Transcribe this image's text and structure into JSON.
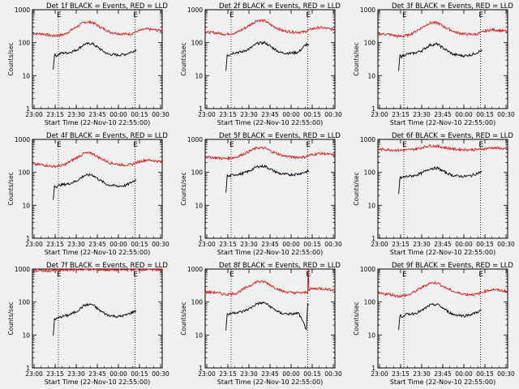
{
  "colors": {
    "background": "#f0f0f0",
    "events": "#000000",
    "lld": "#e01010",
    "axis": "#000000"
  },
  "chart_data": [
    {
      "type": "line",
      "title": "Det 1f BLACK = Events, RED = LLD",
      "xlabel": "Start Time (22-Nov-10 22:55:00)",
      "ylabel": "Counts/sec",
      "xlim": [
        0,
        100
      ],
      "ylim": [
        1,
        1000
      ],
      "yscale": "log",
      "xticks": [
        "23:00",
        "23:15",
        "23:30",
        "23:45",
        "00:00",
        "00:15",
        "00:30"
      ],
      "yticks": [
        "1",
        "10",
        "100",
        "1000"
      ],
      "markers": [
        "E",
        "E"
      ],
      "dotted_x": [
        20,
        79
      ],
      "series": [
        {
          "color": "#e01010",
          "x": [
            0,
            8,
            16,
            24,
            32,
            40,
            46,
            52,
            60,
            68,
            76,
            82,
            88,
            94,
            100
          ],
          "y": [
            190,
            185,
            160,
            175,
            270,
            420,
            420,
            300,
            210,
            185,
            185,
            230,
            260,
            245,
            230
          ]
        },
        {
          "color": "#000000",
          "x": [
            16,
            17,
            18,
            22,
            28,
            34,
            40,
            46,
            52,
            58,
            66,
            72,
            80
          ],
          "y": [
            15,
            45,
            40,
            48,
            50,
            60,
            90,
            95,
            65,
            45,
            42,
            45,
            60
          ]
        }
      ]
    },
    {
      "type": "line",
      "title": "Det 2f BLACK = Events, RED = LLD",
      "xlabel": "Start Time (22-Nov-10 22:55:00)",
      "ylabel": "Counts/sec",
      "xlim": [
        0,
        100
      ],
      "ylim": [
        1,
        1000
      ],
      "yscale": "log",
      "xticks": [
        "23:00",
        "23:15",
        "23:30",
        "23:45",
        "00:00",
        "00:15",
        "00:30"
      ],
      "yticks": [
        "1",
        "10",
        "100",
        "1000"
      ],
      "markers": [
        "E",
        "E"
      ],
      "dotted_x": [
        20,
        79
      ],
      "series": [
        {
          "color": "#e01010",
          "x": [
            0,
            8,
            16,
            24,
            32,
            40,
            46,
            52,
            60,
            68,
            76,
            82,
            88,
            94,
            100
          ],
          "y": [
            210,
            200,
            180,
            200,
            300,
            480,
            460,
            320,
            230,
            210,
            210,
            260,
            290,
            270,
            250
          ]
        },
        {
          "color": "#000000",
          "x": [
            16,
            17,
            18,
            22,
            28,
            34,
            40,
            46,
            52,
            58,
            66,
            72,
            78,
            80
          ],
          "y": [
            15,
            45,
            42,
            50,
            52,
            65,
            95,
            100,
            70,
            50,
            48,
            52,
            90,
            80
          ]
        }
      ]
    },
    {
      "type": "line",
      "title": "Det 3f BLACK = Events, RED = LLD",
      "xlabel": "Start Time (22-Nov-10 22:55:00)",
      "ylabel": "Counts/sec",
      "xlim": [
        0,
        100
      ],
      "ylim": [
        1,
        1000
      ],
      "yscale": "log",
      "xticks": [
        "23:00",
        "23:15",
        "23:30",
        "23:45",
        "00:00",
        "00:15",
        "00:30"
      ],
      "yticks": [
        "1",
        "10",
        "100",
        "1000"
      ],
      "markers": [
        "E",
        "E"
      ],
      "dotted_x": [
        20,
        79
      ],
      "series": [
        {
          "color": "#e01010",
          "x": [
            0,
            8,
            16,
            24,
            32,
            40,
            46,
            52,
            60,
            68,
            76,
            82,
            88,
            94,
            100
          ],
          "y": [
            185,
            180,
            155,
            170,
            260,
            400,
            400,
            290,
            205,
            180,
            180,
            220,
            250,
            235,
            220
          ]
        },
        {
          "color": "#000000",
          "x": [
            16,
            17,
            18,
            22,
            28,
            34,
            40,
            46,
            52,
            58,
            66,
            72,
            80
          ],
          "y": [
            14,
            42,
            38,
            45,
            48,
            58,
            85,
            90,
            62,
            44,
            40,
            43,
            58
          ]
        }
      ]
    },
    {
      "type": "line",
      "title": "Det 4f BLACK = Events, RED = LLD",
      "xlabel": "Start Time (22-Nov-10 22:55:00)",
      "ylabel": "Counts/sec",
      "xlim": [
        0,
        100
      ],
      "ylim": [
        1,
        1000
      ],
      "yscale": "log",
      "xticks": [
        "23:00",
        "23:15",
        "23:30",
        "23:45",
        "00:00",
        "00:15",
        "00:30"
      ],
      "yticks": [
        "1",
        "10",
        "100",
        "1000"
      ],
      "markers": [
        "E",
        "E"
      ],
      "dotted_x": [
        20,
        79
      ],
      "series": [
        {
          "color": "#e01010",
          "x": [
            0,
            8,
            16,
            24,
            32,
            40,
            46,
            52,
            60,
            68,
            76,
            82,
            88,
            94,
            100
          ],
          "y": [
            175,
            170,
            150,
            165,
            250,
            380,
            380,
            270,
            195,
            170,
            170,
            210,
            240,
            225,
            210
          ]
        },
        {
          "color": "#000000",
          "x": [
            16,
            17,
            18,
            22,
            28,
            34,
            40,
            46,
            52,
            58,
            66,
            72,
            80
          ],
          "y": [
            14,
            40,
            37,
            42,
            45,
            55,
            80,
            85,
            58,
            42,
            38,
            40,
            60
          ]
        }
      ]
    },
    {
      "type": "line",
      "title": "Det 5f BLACK = Events, RED = LLD",
      "xlabel": "Start Time (22-Nov-10 22:55:00)",
      "ylabel": "Counts/sec",
      "xlim": [
        0,
        100
      ],
      "ylim": [
        1,
        1000
      ],
      "yscale": "log",
      "xticks": [
        "23:00",
        "23:15",
        "23:30",
        "23:45",
        "00:00",
        "00:15",
        "00:30"
      ],
      "yticks": [
        "1",
        "10",
        "100",
        "1000"
      ],
      "markers": [
        "E",
        "E"
      ],
      "dotted_x": [
        20,
        79
      ],
      "series": [
        {
          "color": "#e01010",
          "x": [
            0,
            8,
            16,
            24,
            32,
            40,
            46,
            52,
            60,
            68,
            76,
            82,
            88,
            94,
            100
          ],
          "y": [
            290,
            280,
            260,
            290,
            400,
            560,
            540,
            420,
            320,
            290,
            290,
            340,
            380,
            360,
            330
          ]
        },
        {
          "color": "#000000",
          "x": [
            16,
            17,
            18,
            22,
            28,
            34,
            40,
            46,
            52,
            58,
            66,
            72,
            80
          ],
          "y": [
            25,
            80,
            75,
            85,
            90,
            110,
            150,
            155,
            115,
            90,
            85,
            90,
            110
          ]
        }
      ]
    },
    {
      "type": "line",
      "title": "Det 6f BLACK = Events, RED = LLD",
      "xlabel": "Start Time (22-Nov-10 22:55:00)",
      "ylabel": "Counts/sec",
      "xlim": [
        0,
        100
      ],
      "ylim": [
        1,
        1000
      ],
      "yscale": "log",
      "xticks": [
        "23:00",
        "23:15",
        "23:30",
        "23:45",
        "00:00",
        "00:15",
        "00:30"
      ],
      "yticks": [
        "1",
        "10",
        "100",
        "1000"
      ],
      "markers": [
        "E",
        "E"
      ],
      "dotted_x": [
        20,
        79
      ],
      "series": [
        {
          "color": "#e01010",
          "x": [
            0,
            8,
            16,
            24,
            32,
            40,
            46,
            52,
            60,
            68,
            76,
            82,
            88,
            94,
            100
          ],
          "y": [
            500,
            490,
            470,
            480,
            540,
            650,
            620,
            560,
            500,
            490,
            490,
            520,
            560,
            540,
            500
          ]
        },
        {
          "color": "#000000",
          "x": [
            16,
            17,
            18,
            22,
            28,
            34,
            40,
            46,
            52,
            58,
            66,
            72,
            80
          ],
          "y": [
            22,
            70,
            68,
            75,
            80,
            95,
            130,
            135,
            100,
            80,
            75,
            80,
            105
          ]
        }
      ]
    },
    {
      "type": "line",
      "title": "Det 7f BLACK = Events, RED = LLD",
      "xlabel": "Start Time (22-Nov-10 22:55:00)",
      "ylabel": "Counts/sec",
      "xlim": [
        0,
        100
      ],
      "ylim": [
        1,
        1000
      ],
      "yscale": "log",
      "xticks": [
        "23:00",
        "23:15",
        "23:30",
        "23:45",
        "00:00",
        "00:15",
        "00:30"
      ],
      "yticks": [
        "1",
        "10",
        "100",
        "1000"
      ],
      "markers": [
        "E",
        "E"
      ],
      "dotted_x": [
        20,
        79
      ],
      "series": [
        {
          "color": "#e01010",
          "x": [
            0,
            10,
            20,
            30,
            40,
            50,
            60,
            70,
            80,
            90,
            100
          ],
          "y": [
            900,
            880,
            920,
            950,
            980,
            960,
            940,
            950,
            970,
            960,
            950
          ]
        },
        {
          "color": "#000000",
          "x": [
            16,
            17,
            18,
            22,
            28,
            34,
            40,
            46,
            52,
            58,
            66,
            72,
            80
          ],
          "y": [
            9,
            32,
            30,
            36,
            40,
            52,
            80,
            85,
            55,
            40,
            36,
            40,
            55
          ]
        }
      ]
    },
    {
      "type": "line",
      "title": "Det 8f BLACK = Events, RED = LLD",
      "xlabel": "Start Time (22-Nov-10 22:55:00)",
      "ylabel": "Counts/sec",
      "xlim": [
        0,
        100
      ],
      "ylim": [
        1,
        1000
      ],
      "yscale": "log",
      "xticks": [
        "23:00",
        "23:15",
        "23:30",
        "23:45",
        "00:00",
        "00:15",
        "00:30"
      ],
      "yticks": [
        "1",
        "10",
        "100",
        "1000"
      ],
      "markers": [
        "E",
        "E"
      ],
      "dotted_x": [
        20,
        79
      ],
      "series": [
        {
          "color": "#e01010",
          "x": [
            0,
            8,
            16,
            24,
            32,
            40,
            46,
            52,
            60,
            68,
            76,
            79,
            79.5,
            80,
            82,
            88,
            94,
            100
          ],
          "y": [
            200,
            195,
            170,
            185,
            280,
            420,
            410,
            300,
            210,
            190,
            190,
            200,
            1000,
            230,
            250,
            260,
            245,
            230
          ]
        },
        {
          "color": "#000000",
          "x": [
            16,
            17,
            18,
            22,
            28,
            34,
            40,
            46,
            52,
            58,
            66,
            72,
            78,
            79,
            80
          ],
          "y": [
            14,
            45,
            42,
            48,
            50,
            62,
            90,
            95,
            65,
            46,
            43,
            46,
            15,
            80,
            75
          ]
        }
      ]
    },
    {
      "type": "line",
      "title": "Det 9f BLACK = Events, RED = LLD",
      "xlabel": "Start Time (22-Nov-10 22:55:00)",
      "ylabel": "Counts/sec",
      "xlim": [
        0,
        100
      ],
      "ylim": [
        1,
        1000
      ],
      "yscale": "log",
      "xticks": [
        "23:00",
        "23:15",
        "23:30",
        "23:45",
        "00:00",
        "00:15",
        "00:30"
      ],
      "yticks": [
        "1",
        "10",
        "100",
        "1000"
      ],
      "markers": [
        "E",
        "E"
      ],
      "dotted_x": [
        20,
        79
      ],
      "series": [
        {
          "color": "#e01010",
          "x": [
            0,
            8,
            16,
            24,
            32,
            40,
            46,
            52,
            60,
            68,
            76,
            82,
            88,
            94,
            100
          ],
          "y": [
            180,
            175,
            150,
            165,
            250,
            380,
            380,
            270,
            195,
            170,
            170,
            210,
            240,
            225,
            210
          ]
        },
        {
          "color": "#000000",
          "x": [
            16,
            17,
            18,
            22,
            28,
            34,
            40,
            46,
            52,
            58,
            66,
            72,
            80
          ],
          "y": [
            14,
            40,
            36,
            42,
            45,
            55,
            80,
            85,
            58,
            42,
            38,
            42,
            56
          ]
        }
      ]
    }
  ]
}
